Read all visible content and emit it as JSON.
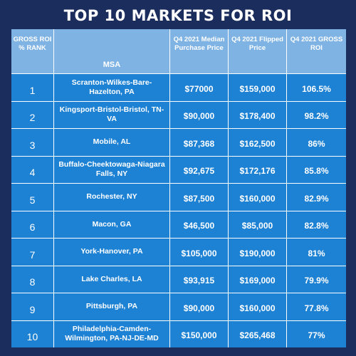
{
  "title": "TOP 10 MARKETS FOR ROI",
  "headers": {
    "rank": "GROSS ROI % RANK",
    "msa": "MSA",
    "purchase": "Q4 2021 Median Purchase Price",
    "flipped": "Q4 2021 Flipped Price",
    "roi": "Q4 2021 GROSS ROI"
  },
  "rows": [
    {
      "rank": "1",
      "msa": "Scranton-Wilkes-Bare-Hazelton, PA",
      "purchase": "$77000",
      "flipped": "$159,000",
      "roi": "106.5%"
    },
    {
      "rank": "2",
      "msa": "Kingsport-Bristol-Bristol, TN-VA",
      "purchase": "$90,000",
      "flipped": "$178,400",
      "roi": "98.2%"
    },
    {
      "rank": "3",
      "msa": "Mobile, AL",
      "purchase": "$87,368",
      "flipped": "$162,500",
      "roi": "86%"
    },
    {
      "rank": "4",
      "msa": "Buffalo-Cheektowaga-Niagara Falls, NY",
      "purchase": "$92,675",
      "flipped": "$172,176",
      "roi": "85.8%"
    },
    {
      "rank": "5",
      "msa": "Rochester, NY",
      "purchase": "$87,500",
      "flipped": "$160,000",
      "roi": "82.9%"
    },
    {
      "rank": "6",
      "msa": "Macon, GA",
      "purchase": "$46,500",
      "flipped": "$85,000",
      "roi": "82.8%"
    },
    {
      "rank": "7",
      "msa": "York-Hanover, PA",
      "purchase": "$105,000",
      "flipped": "$190,000",
      "roi": "81%"
    },
    {
      "rank": "8",
      "msa": "Lake Charles, LA",
      "purchase": "$93,915",
      "flipped": "$169,000",
      "roi": "79.9%"
    },
    {
      "rank": "9",
      "msa": "Pittsburgh, PA",
      "purchase": "$90,000",
      "flipped": "$160,000",
      "roi": "77.8%"
    },
    {
      "rank": "10",
      "msa": "Philadelphia-Camden-Wilmington, PA-NJ-DE-MD",
      "purchase": "$150,000",
      "flipped": "$265,468",
      "roi": "77%"
    }
  ],
  "colors": {
    "background": "#1b2d5c",
    "header_fill": "#7fb3e3",
    "row_fill": "#1d81d4"
  }
}
